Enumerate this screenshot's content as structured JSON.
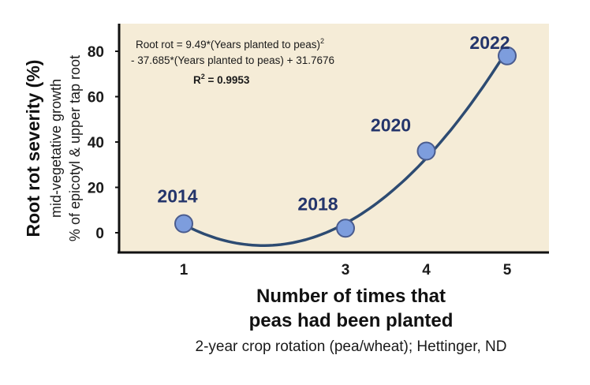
{
  "chart_data": {
    "type": "scatter",
    "x": [
      1,
      3,
      4,
      5
    ],
    "y": [
      4,
      2,
      36,
      78
    ],
    "point_labels": [
      "2014",
      "2018",
      "2020",
      "2022"
    ],
    "xticks": [
      "1",
      "3",
      "4",
      "5"
    ],
    "yticks": [
      "0",
      "20",
      "40",
      "60",
      "80"
    ],
    "xlim": [
      0,
      6
    ],
    "ylim": [
      -10,
      90
    ],
    "grid": false,
    "trendline": {
      "type": "polynomial",
      "degree": 2,
      "coefficients": [
        9.49,
        -37.685,
        31.7676
      ],
      "equation_line1": "Root rot = 9.49*(Years planted to peas)",
      "equation_exponent": "2",
      "equation_line2": "- 37.685*(Years planted to peas) + 31.7676",
      "r_squared_prefix": "R",
      "r_squared_exponent": "2",
      "r_squared_value": " = 0.9953"
    },
    "ylabel": "Root rot severity (%)",
    "ylabel_sub1": "mid-vegetative growth",
    "ylabel_sub2": "% of epicotyl & upper tap root",
    "xlabel_line1": "Number of times that",
    "xlabel_line2": "peas had been planted",
    "caption": "2-year crop rotation (pea/wheat); Hettinger, ND",
    "colors": {
      "plot_bg": "#f5ecd7",
      "point_fill": "#7d9ddd",
      "point_stroke": "#4a5c8e",
      "curve": "#2d4b72",
      "year_label": "#24356b"
    }
  }
}
